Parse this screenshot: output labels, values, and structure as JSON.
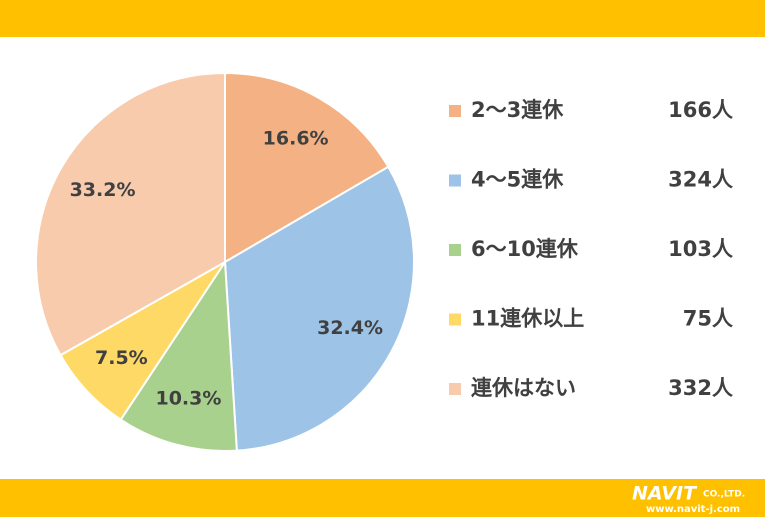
{
  "chart_data": {
    "type": "pie",
    "categories": [
      "2～3連休",
      "4～5連休",
      "6～10連休",
      "11連休以上",
      "連休はない"
    ],
    "values": [
      16.6,
      32.4,
      10.3,
      7.5,
      33.2
    ],
    "value_labels": [
      "16.6%",
      "32.4%",
      "10.3%",
      "7.5%",
      "33.2%"
    ],
    "count_labels": [
      "166人",
      "324人",
      "103人",
      "75人",
      "332人"
    ],
    "colors": [
      "#f4b183",
      "#9dc3e6",
      "#a9d18e",
      "#ffd966",
      "#f8cbad"
    ],
    "legend": "right"
  },
  "branding": {
    "name": "NAVIT",
    "suffix": "CO.,LTD.",
    "url": "www.navit-j.com"
  }
}
